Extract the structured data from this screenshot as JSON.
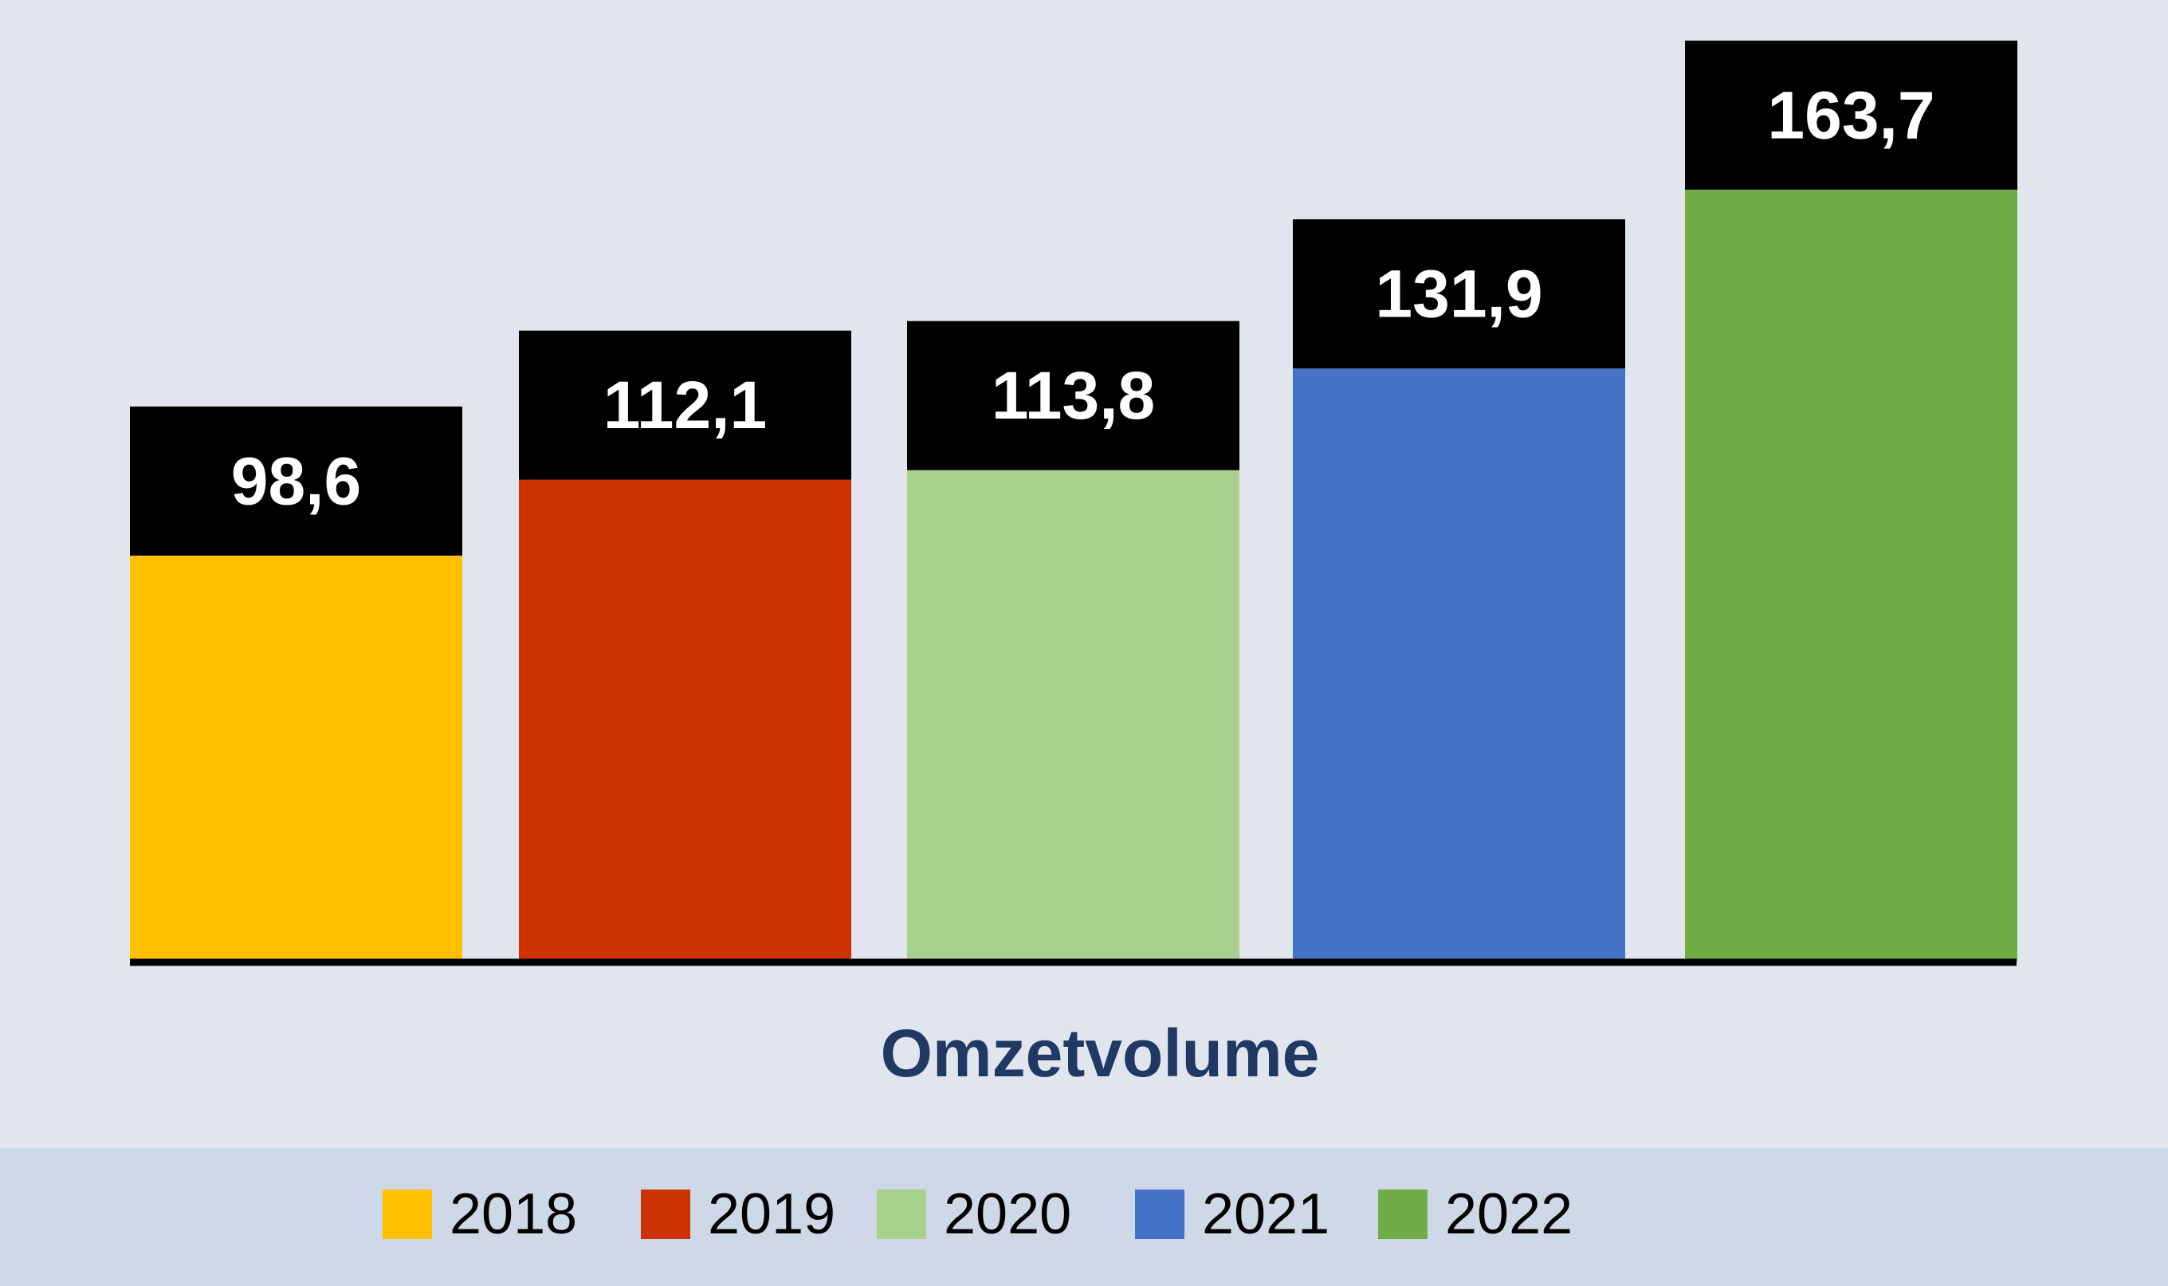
{
  "chart_data": {
    "type": "bar",
    "categories": [
      "Omzetvolume"
    ],
    "series": [
      {
        "name": "2018",
        "values": [
          98.6
        ],
        "label": "98,6",
        "color": "#ffc000"
      },
      {
        "name": "2019",
        "values": [
          112.1
        ],
        "label": "112,1",
        "color": "#cc3300"
      },
      {
        "name": "2020",
        "values": [
          113.8
        ],
        "label": "113,8",
        "color": "#a9d18e"
      },
      {
        "name": "2021",
        "values": [
          131.9
        ],
        "label": "131,9",
        "color": "#4472c4"
      },
      {
        "name": "2022",
        "values": [
          163.7
        ],
        "label": "163,7",
        "color": "#70ad47"
      }
    ],
    "title": "",
    "xlabel": "Omzetvolume",
    "ylabel": "",
    "ylim": [
      0,
      170
    ],
    "grid": false,
    "legend": "bottom",
    "label_box_color": "#000000",
    "background_color": "#e1e6ee",
    "legend_background_color": "#cfd8e6",
    "category_label_color": "#1f3864"
  }
}
